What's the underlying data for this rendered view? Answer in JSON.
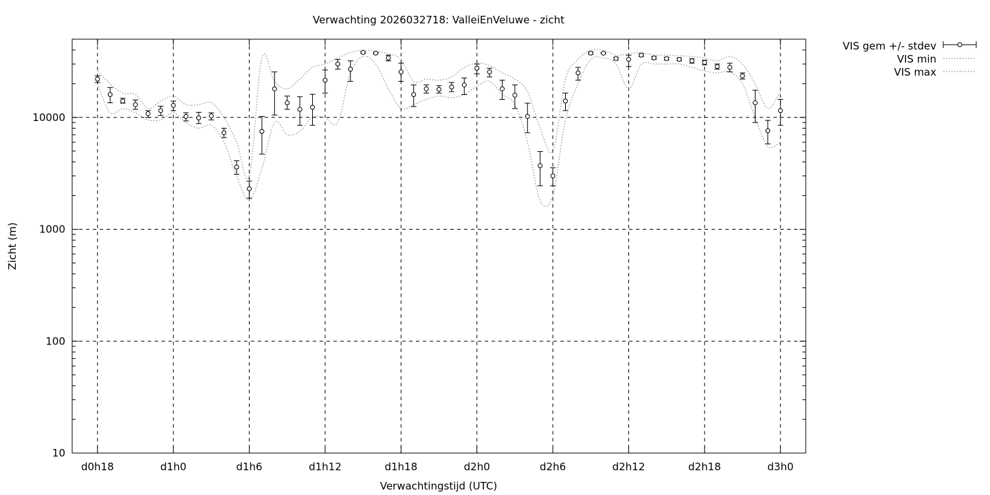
{
  "chart_data": {
    "type": "scatter",
    "title": "Verwachting 2026032718: ValleiEnVeluwe - zicht",
    "xlabel": "Verwachtingstijd (UTC)",
    "ylabel": "Zicht (m)",
    "yscale": "log",
    "ylim": [
      10,
      50000
    ],
    "xlim_hours": [
      16,
      74
    ],
    "grid": true,
    "legend_position": "outside-top-right",
    "x_ticks": [
      {
        "hour": 18,
        "label": "d0h18"
      },
      {
        "hour": 24,
        "label": "d1h0"
      },
      {
        "hour": 30,
        "label": "d1h6"
      },
      {
        "hour": 36,
        "label": "d1h12"
      },
      {
        "hour": 42,
        "label": "d1h18"
      },
      {
        "hour": 48,
        "label": "d2h0"
      },
      {
        "hour": 54,
        "label": "d2h6"
      },
      {
        "hour": 60,
        "label": "d2h12"
      },
      {
        "hour": 66,
        "label": "d2h18"
      },
      {
        "hour": 72,
        "label": "d3h0"
      }
    ],
    "y_ticks": [
      {
        "value": 10,
        "label": "10"
      },
      {
        "value": 100,
        "label": "100"
      },
      {
        "value": 1000,
        "label": "1000"
      },
      {
        "value": 10000,
        "label": "10000"
      }
    ],
    "legend": {
      "mean": "VIS gem +/- stdev",
      "min": "VIS min",
      "max": "VIS max"
    },
    "x": [
      18,
      19,
      20,
      21,
      22,
      23,
      24,
      25,
      26,
      27,
      28,
      29,
      30,
      31,
      32,
      33,
      34,
      35,
      36,
      37,
      38,
      39,
      40,
      41,
      42,
      43,
      44,
      45,
      46,
      47,
      48,
      49,
      50,
      51,
      52,
      53,
      54,
      55,
      56,
      57,
      58,
      59,
      60,
      61,
      62,
      63,
      64,
      65,
      66,
      67,
      68,
      69,
      70,
      71,
      72
    ],
    "mean": [
      22000,
      16000,
      14000,
      13000,
      10800,
      11500,
      12800,
      10200,
      9900,
      10300,
      7300,
      3600,
      2300,
      7500,
      18000,
      13500,
      11800,
      12300,
      21500,
      30000,
      27000,
      38000,
      37500,
      34000,
      25500,
      16000,
      18000,
      17800,
      18700,
      19500,
      27500,
      25500,
      18000,
      15800,
      10200,
      3700,
      3000,
      14000,
      25000,
      37500,
      37500,
      33500,
      33000,
      36000,
      34000,
      33500,
      33000,
      32000,
      31000,
      28500,
      28000,
      23500,
      13500,
      7600,
      11500
    ],
    "err_low": [
      20500,
      13500,
      13400,
      11800,
      10000,
      10400,
      11500,
      9300,
      8800,
      9500,
      6600,
      3100,
      1900,
      4700,
      10500,
      11800,
      8500,
      8500,
      16500,
      27000,
      21000,
      37500,
      37000,
      32000,
      21000,
      12500,
      16500,
      16500,
      17000,
      16000,
      24500,
      23000,
      14500,
      12000,
      7300,
      2450,
      2450,
      11500,
      21500,
      36500,
      37000,
      32500,
      28500,
      35000,
      33000,
      32500,
      32000,
      30500,
      29500,
      27000,
      25500,
      22000,
      9000,
      5800,
      8500
    ],
    "err_high": [
      23500,
      18500,
      14800,
      14300,
      11500,
      12600,
      14000,
      11000,
      11100,
      11000,
      8000,
      4100,
      2700,
      10200,
      25500,
      15500,
      15300,
      16100,
      26500,
      33000,
      32000,
      38500,
      38000,
      36000,
      30500,
      19500,
      19500,
      19200,
      20500,
      22500,
      30000,
      27500,
      21500,
      19500,
      13400,
      4950,
      3550,
      16500,
      28000,
      38500,
      38000,
      34500,
      36000,
      37000,
      35000,
      34500,
      34000,
      33500,
      32500,
      30000,
      30500,
      25000,
      17500,
      9400,
      14500
    ],
    "vmin": [
      20000,
      11000,
      12000,
      11000,
      9500,
      9500,
      11000,
      9000,
      8000,
      8500,
      6000,
      3000,
      1800,
      3500,
      9000,
      7000,
      7500,
      10000,
      10000,
      9000,
      25000,
      35000,
      30000,
      18000,
      12000,
      13000,
      14500,
      15500,
      15000,
      16000,
      19000,
      21000,
      16000,
      13000,
      6000,
      1800,
      2000,
      9500,
      20000,
      33000,
      34000,
      30000,
      18000,
      30000,
      30000,
      30000,
      30000,
      28000,
      26000,
      25000,
      25500,
      20000,
      10000,
      5500,
      6000
    ],
    "vmax": [
      26000,
      20000,
      16500,
      16000,
      12000,
      14000,
      15500,
      13000,
      13000,
      13500,
      10000,
      6000,
      3000,
      34000,
      21000,
      18000,
      22000,
      28000,
      30000,
      34000,
      38000,
      40000,
      39000,
      37000,
      33000,
      21000,
      22000,
      21500,
      23000,
      28000,
      30500,
      29000,
      25000,
      22000,
      17000,
      8000,
      5000,
      22000,
      33000,
      40000,
      40000,
      36000,
      37000,
      38000,
      36000,
      36000,
      35500,
      35000,
      34000,
      32000,
      35000,
      30000,
      20000,
      12000,
      17000
    ]
  }
}
